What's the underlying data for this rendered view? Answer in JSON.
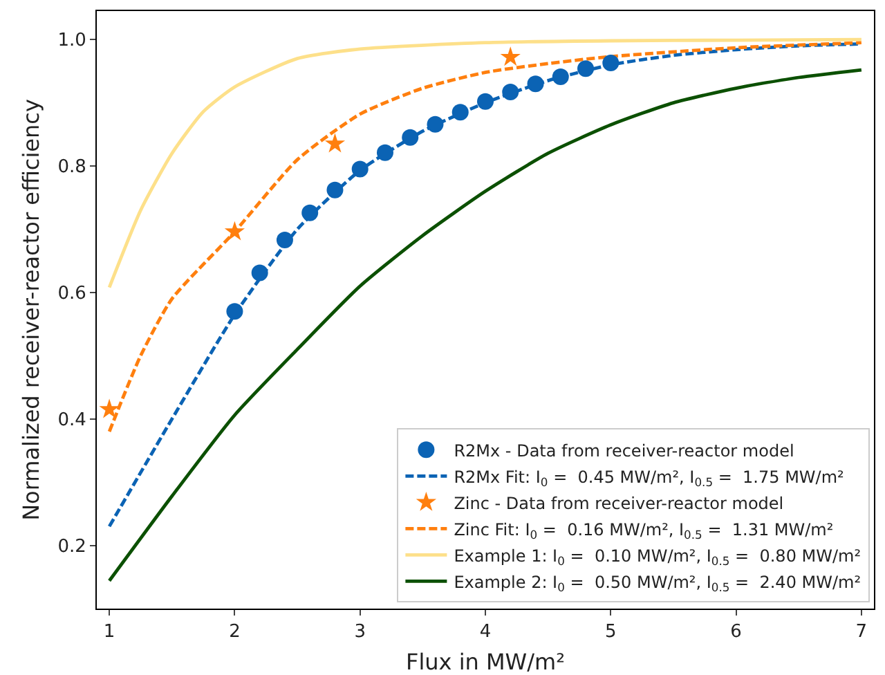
{
  "chart_data": {
    "type": "line",
    "xlabel": "Flux in MW/m²",
    "ylabel": "Normalized receiver-reactor efficiency",
    "xlim": [
      0.9,
      7.1
    ],
    "xticks": [
      1,
      2,
      3,
      4,
      5,
      6,
      7
    ],
    "ylim": [
      0.1,
      1.045
    ],
    "yticks": [
      0.2,
      0.4,
      0.6,
      0.8,
      {
        "value": 1.0,
        "label": "1.0"
      }
    ],
    "grid": false,
    "legend": "bottom right",
    "series": [
      {
        "name": "R2Mx - Data from receiver-reactor model",
        "type": "scatter",
        "marker": "circle",
        "color": "#0b63b4",
        "x": [
          2,
          2.2,
          2.4,
          2.6,
          2.8,
          3,
          3.2,
          3.4,
          3.6,
          3.8,
          4,
          4.2,
          4.4,
          4.6,
          4.8,
          5
        ],
        "values": [
          0.57,
          0.631,
          0.683,
          0.726,
          0.762,
          0.795,
          0.821,
          0.845,
          0.866,
          0.885,
          0.902,
          0.917,
          0.93,
          0.941,
          0.954,
          0.963
        ]
      },
      {
        "name": "R2Mx Fit: I$_{0}$ =  0.45 MW/m², I$_{0.5}$ =  1.75 MW/m²",
        "line_style": "dashed",
        "color": "#0b63b4",
        "x": [
          1,
          1.5,
          2,
          2.5,
          3,
          3.5,
          4,
          4.5,
          5,
          5.5,
          6,
          6.5,
          7
        ],
        "values": [
          0.23,
          0.4,
          0.565,
          0.7,
          0.793,
          0.855,
          0.9,
          0.935,
          0.96,
          0.975,
          0.984,
          0.99,
          0.993
        ]
      },
      {
        "name": "Zinc - Data from receiver-reactor model",
        "type": "scatter",
        "marker": "star",
        "color": "#ff7f0e",
        "x": [
          1,
          2,
          2.8,
          4.2
        ],
        "values": [
          0.415,
          0.696,
          0.835,
          0.972
        ]
      },
      {
        "name": "Zinc Fit: I$_{0}$ =  0.16 MW/m², I$_{0.5}$ =  1.31 MW/m²",
        "line_style": "dashed",
        "color": "#ff7f0e",
        "x": [
          1,
          1.25,
          1.5,
          2,
          2.5,
          3,
          3.5,
          4,
          4.5,
          5,
          6,
          7
        ],
        "values": [
          0.38,
          0.5,
          0.59,
          0.696,
          0.81,
          0.882,
          0.923,
          0.948,
          0.962,
          0.973,
          0.987,
          0.995
        ]
      },
      {
        "name": "Example 1: I$_{0}$ =  0.10 MW/m², I$_{0.5}$ =  0.80 MW/m²",
        "line_style": "solid",
        "color": "#fde08a",
        "x": [
          1,
          1.25,
          1.5,
          1.75,
          2,
          2.5,
          3,
          4,
          5,
          6,
          7
        ],
        "values": [
          0.608,
          0.73,
          0.82,
          0.886,
          0.925,
          0.97,
          0.985,
          0.995,
          0.998,
          0.999,
          1.0
        ]
      },
      {
        "name": "Example 2: I$_{0}$ =  0.50 MW/m², I$_{0.5}$ =  2.40 MW/m²",
        "line_style": "solid",
        "color": "#0b5000",
        "x": [
          1,
          1.5,
          2,
          2.5,
          3,
          3.5,
          4,
          4.5,
          5,
          5.5,
          6,
          6.5,
          7
        ],
        "values": [
          0.144,
          0.278,
          0.406,
          0.51,
          0.61,
          0.69,
          0.76,
          0.82,
          0.865,
          0.9,
          0.923,
          0.94,
          0.952
        ]
      }
    ]
  }
}
